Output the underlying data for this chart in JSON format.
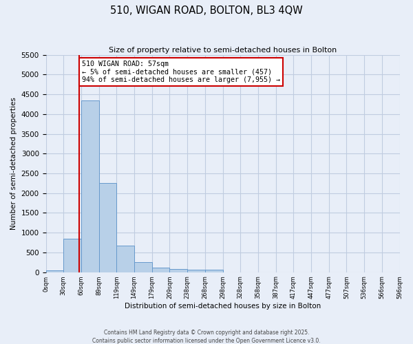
{
  "title": "510, WIGAN ROAD, BOLTON, BL3 4QW",
  "subtitle": "Size of property relative to semi-detached houses in Bolton",
  "xlabel": "Distribution of semi-detached houses by size in Bolton",
  "ylabel": "Number of semi-detached properties",
  "bin_labels": [
    "0sqm",
    "30sqm",
    "60sqm",
    "89sqm",
    "119sqm",
    "149sqm",
    "179sqm",
    "209sqm",
    "238sqm",
    "268sqm",
    "298sqm",
    "328sqm",
    "358sqm",
    "387sqm",
    "417sqm",
    "447sqm",
    "477sqm",
    "507sqm",
    "536sqm",
    "566sqm",
    "596sqm"
  ],
  "bar_heights": [
    50,
    850,
    4350,
    2250,
    680,
    250,
    120,
    80,
    60,
    55,
    0,
    0,
    0,
    0,
    0,
    0,
    0,
    0,
    0,
    0
  ],
  "n_bins": 20,
  "bar_color": "#b8d0e8",
  "bar_edge_color": "#6699cc",
  "property_bin": 1.9,
  "vline_color": "#cc0000",
  "annotation_text": "510 WIGAN ROAD: 57sqm\n← 5% of semi-detached houses are smaller (457)\n94% of semi-detached houses are larger (7,955) →",
  "annotation_box_color": "#ffffff",
  "annotation_border_color": "#cc0000",
  "ylim": [
    0,
    5500
  ],
  "yticks": [
    0,
    500,
    1000,
    1500,
    2000,
    2500,
    3000,
    3500,
    4000,
    4500,
    5000,
    5500
  ],
  "background_color": "#e8eef8",
  "plot_bg_color": "#e8eef8",
  "grid_color": "#c0cce0",
  "footer_line1": "Contains HM Land Registry data © Crown copyright and database right 2025.",
  "footer_line2": "Contains public sector information licensed under the Open Government Licence v3.0."
}
